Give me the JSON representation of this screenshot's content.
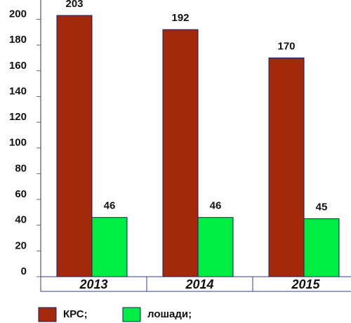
{
  "chart_data": {
    "type": "bar",
    "categories": [
      "2013",
      "2014",
      "2015"
    ],
    "series": [
      {
        "name": "КРС;",
        "color": "#a3290a",
        "values": [
          203,
          192,
          170
        ]
      },
      {
        "name": "лошади;",
        "color": "#00ee44",
        "values": [
          46,
          46,
          45
        ]
      }
    ],
    "ylim": [
      0,
      215
    ],
    "yticks": [
      0,
      20,
      40,
      60,
      80,
      100,
      120,
      140,
      160,
      180,
      200
    ]
  }
}
